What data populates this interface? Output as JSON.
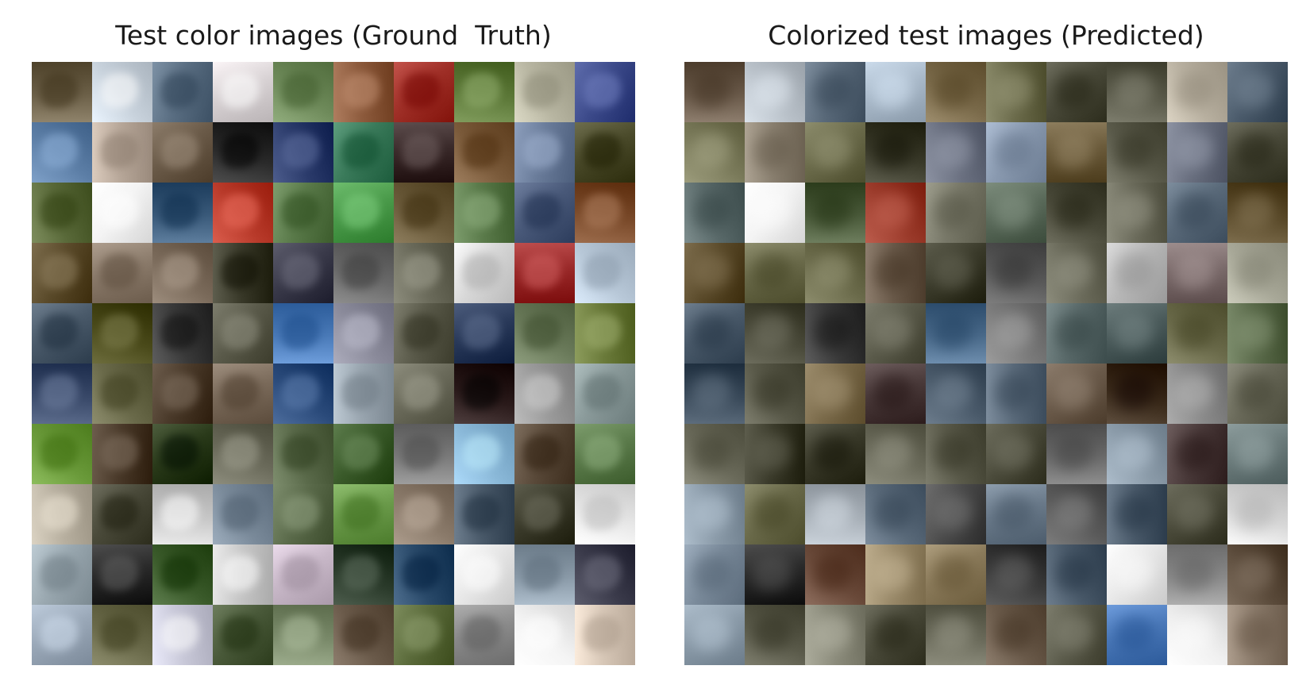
{
  "left_panel": {
    "title": "Test color images (Ground  Truth)",
    "tile_colors": [
      [
        "#6c6048",
        "#c8d2dc",
        "#5a6e82",
        "#d8d2d4",
        "#6e8a5a",
        "#8c5a3c",
        "#a03028",
        "#5e7a3a",
        "#b8b6a2",
        "#3c4a8a"
      ],
      [
        "#5c7ea6",
        "#b8a89a",
        "#6a5a48",
        "#2a2a2a",
        "#2a3a6a",
        "#3a7a5a",
        "#3a2a2a",
        "#7a5a3a",
        "#6a7c9a",
        "#4a4a2a"
      ],
      [
        "#5a6a3a",
        "#f4f4f4",
        "#3a5a7a",
        "#b83a2a",
        "#5a7a4a",
        "#4a9a4a",
        "#6a5a3a",
        "#5a7a4a",
        "#4a5a7a",
        "#7a4a2a"
      ],
      [
        "#5a4a2a",
        "#8a7a6a",
        "#7a6a5a",
        "#3a3a2a",
        "#3a3a4a",
        "#6a6a6a",
        "#6a6a5a",
        "#d8d8d8",
        "#9a2a2a",
        "#b8c8d8"
      ],
      [
        "#4a5a6a",
        "#4a4a1a",
        "#3a3a3a",
        "#5a5a4a",
        "#4a7ab8",
        "#8a8a9a",
        "#5a5a4a",
        "#2a3a5a",
        "#6a7a5a",
        "#6a7a3a"
      ],
      [
        "#3a4a6a",
        "#6a6a4a",
        "#4a3a2a",
        "#7a6a5a",
        "#2a4a7a",
        "#9aa6b0",
        "#6a6a5a",
        "#2a1a1a",
        "#9a9a9a",
        "#8a9a9a"
      ],
      [
        "#6a9a3a",
        "#4a3a2a",
        "#2a3a1a",
        "#6a6a5a",
        "#5a6a4a",
        "#3a5a2a",
        "#7a7a7a",
        "#8ab8d8",
        "#5a4a3a",
        "#5a7a4a"
      ],
      [
        "#b8b0a0",
        "#4a4a3a",
        "#c8c8c8",
        "#7a8a9a",
        "#5a6a4a",
        "#6a9a4a",
        "#8a7a6a",
        "#4a5a6a",
        "#3a3a2a",
        "#e8e8e8"
      ],
      [
        "#9aa8b0",
        "#2a2a2a",
        "#3a5a2a",
        "#c8c8c8",
        "#c8b8c8",
        "#2a3a2a",
        "#2a4a6a",
        "#e8e8e8",
        "#8a9aa8",
        "#3a3a4a"
      ],
      [
        "#9aa8b8",
        "#6a6a4a",
        "#c8c8d8",
        "#4a5a3a",
        "#7a8a6a",
        "#6a5a4a",
        "#5a6a3a",
        "#8a8a8a",
        "#f4f4f4",
        "#d8c8b8"
      ]
    ]
  },
  "right_panel": {
    "title": "Colorized test images (Predicted)",
    "tile_colors": [
      [
        "#6a5a4a",
        "#b8c0c8",
        "#5a6a7a",
        "#a8b8c8",
        "#7a6a4a",
        "#6a6a4a",
        "#4a4a3a",
        "#5a5a4a",
        "#b8b0a0",
        "#4a5a6a"
      ],
      [
        "#7a7a5a",
        "#8a8070",
        "#6a6a4a",
        "#3a3a2a",
        "#6a7080",
        "#8a9ab0",
        "#6a5a3a",
        "#5a5a4a",
        "#6a7080",
        "#4a4a3a"
      ],
      [
        "#5a6a6a",
        "#f4f4f4",
        "#4a5a3a",
        "#9a3a2a",
        "#7a7a6a",
        "#5a6a5a",
        "#4a4a3a",
        "#6a6a5a",
        "#5a6a7a",
        "#5a4a2a"
      ],
      [
        "#5a4a2a",
        "#6a6a4a",
        "#6a6a4a",
        "#6a5a4a",
        "#3a3a2a",
        "#5a5a5a",
        "#6a6a5a",
        "#b8b8b8",
        "#7a6a6a",
        "#a8a898"
      ],
      [
        "#4a5a6a",
        "#4a4a3a",
        "#3a3a3a",
        "#5a5a4a",
        "#4a6a8a",
        "#7a7a7a",
        "#5a6a6a",
        "#4a5a5a",
        "#6a6a4a",
        "#5a6a4a"
      ],
      [
        "#3a4a5a",
        "#5a5a4a",
        "#7a6a4a",
        "#4a3a3a",
        "#4a5a6a",
        "#5a6a7a",
        "#6a5a4a",
        "#3a2a1a",
        "#8a8a8a",
        "#6a6a5a"
      ],
      [
        "#6a6a5a",
        "#3a3a2a",
        "#3a3a2a",
        "#6a6a5a",
        "#5a5a4a",
        "#4a4a3a",
        "#6a6a6a",
        "#8a9aa8",
        "#4a3a3a",
        "#6a7a7a"
      ],
      [
        "#8a9aa8",
        "#6a6a4a",
        "#a8b0b8",
        "#5a6a7a",
        "#4a4a4a",
        "#6a7a8a",
        "#5a5a5a",
        "#4a5a6a",
        "#4a4a3a",
        "#d8d8d8"
      ],
      [
        "#7a8a9a",
        "#2a2a2a",
        "#6a4a3a",
        "#9a8a6a",
        "#8a7a5a",
        "#3a3a3a",
        "#4a5a6a",
        "#e8e8e8",
        "#8a8a8a",
        "#5a4a3a"
      ],
      [
        "#8a9aa8",
        "#5a5a4a",
        "#8a8a7a",
        "#4a4a3a",
        "#6a6a5a",
        "#6a5a4a",
        "#5a5a4a",
        "#4a78b8",
        "#f0f0f0",
        "#8a7a6a"
      ]
    ]
  }
}
